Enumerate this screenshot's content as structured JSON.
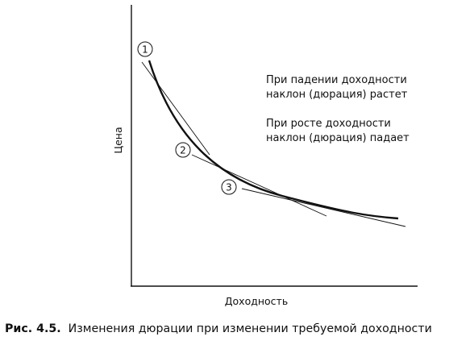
{
  "diagram": {
    "y_axis_label": "Цена",
    "x_axis_label": "Доходность",
    "markers": [
      "1",
      "2",
      "3"
    ],
    "notes": [
      [
        "При падении доходности",
        "наклон (дюрация) растет"
      ],
      [
        "При росте доходности",
        "наклон (дюрация) падает"
      ]
    ]
  },
  "caption": {
    "figure_number": "Рис. 4.5.",
    "text": "Изменения дюрации при изменении требуемой доходности"
  }
}
